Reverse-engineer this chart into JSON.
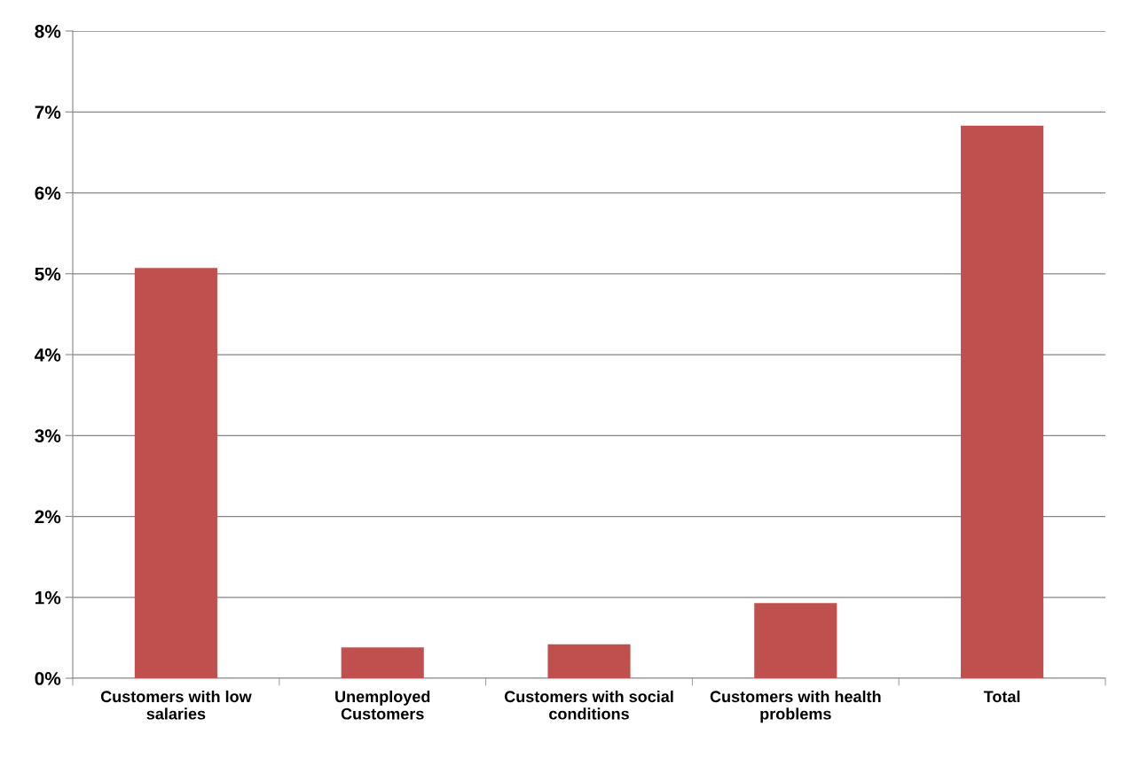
{
  "chart_data": {
    "type": "bar",
    "categories": [
      "Customers with low\nsalaries",
      "Unemployed\nCustomers",
      "Customers with social\nconditions",
      "Customers with health\nproblems",
      "Total"
    ],
    "values": [
      5.07,
      0.38,
      0.42,
      0.93,
      6.83
    ],
    "color": "#c0504d",
    "ylim": [
      0,
      8
    ],
    "yticks": [
      {
        "value": 0,
        "label": "0%"
      },
      {
        "value": 1,
        "label": "1%"
      },
      {
        "value": 2,
        "label": "2%"
      },
      {
        "value": 3,
        "label": "3%"
      },
      {
        "value": 4,
        "label": "4%"
      },
      {
        "value": 5,
        "label": "5%"
      },
      {
        "value": 6,
        "label": "6%"
      },
      {
        "value": 7,
        "label": "7%"
      },
      {
        "value": 8,
        "label": "8%"
      }
    ],
    "grid": "y",
    "legend": false
  }
}
